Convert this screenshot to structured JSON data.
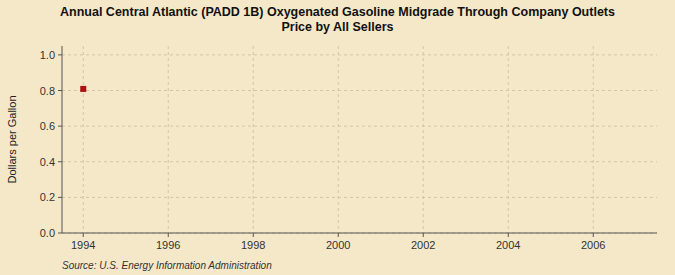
{
  "chart_data": {
    "type": "scatter",
    "title": "Annual Central Atlantic (PADD 1B) Oxygenated Gasoline Midgrade Through Company Outlets\nPrice by All Sellers",
    "y_label": "Dollars per Gallon",
    "annotations": [
      "Source: U.S. Energy Information Administration"
    ],
    "x": [
      1994
    ],
    "values": [
      0.809
    ],
    "color": "#aa1111",
    "marker": "square",
    "xlim": [
      1993.5,
      2007.5
    ],
    "xticks": [
      1994,
      1996,
      1998,
      2000,
      2002,
      2004,
      2006
    ],
    "ylim": [
      0.0,
      1.05
    ],
    "yticks": [
      {
        "value": 0.0,
        "label": "0.0"
      },
      0.2,
      0.4,
      0.6,
      0.8,
      {
        "value": 1.0,
        "label": "1.0"
      }
    ],
    "grid": true
  }
}
